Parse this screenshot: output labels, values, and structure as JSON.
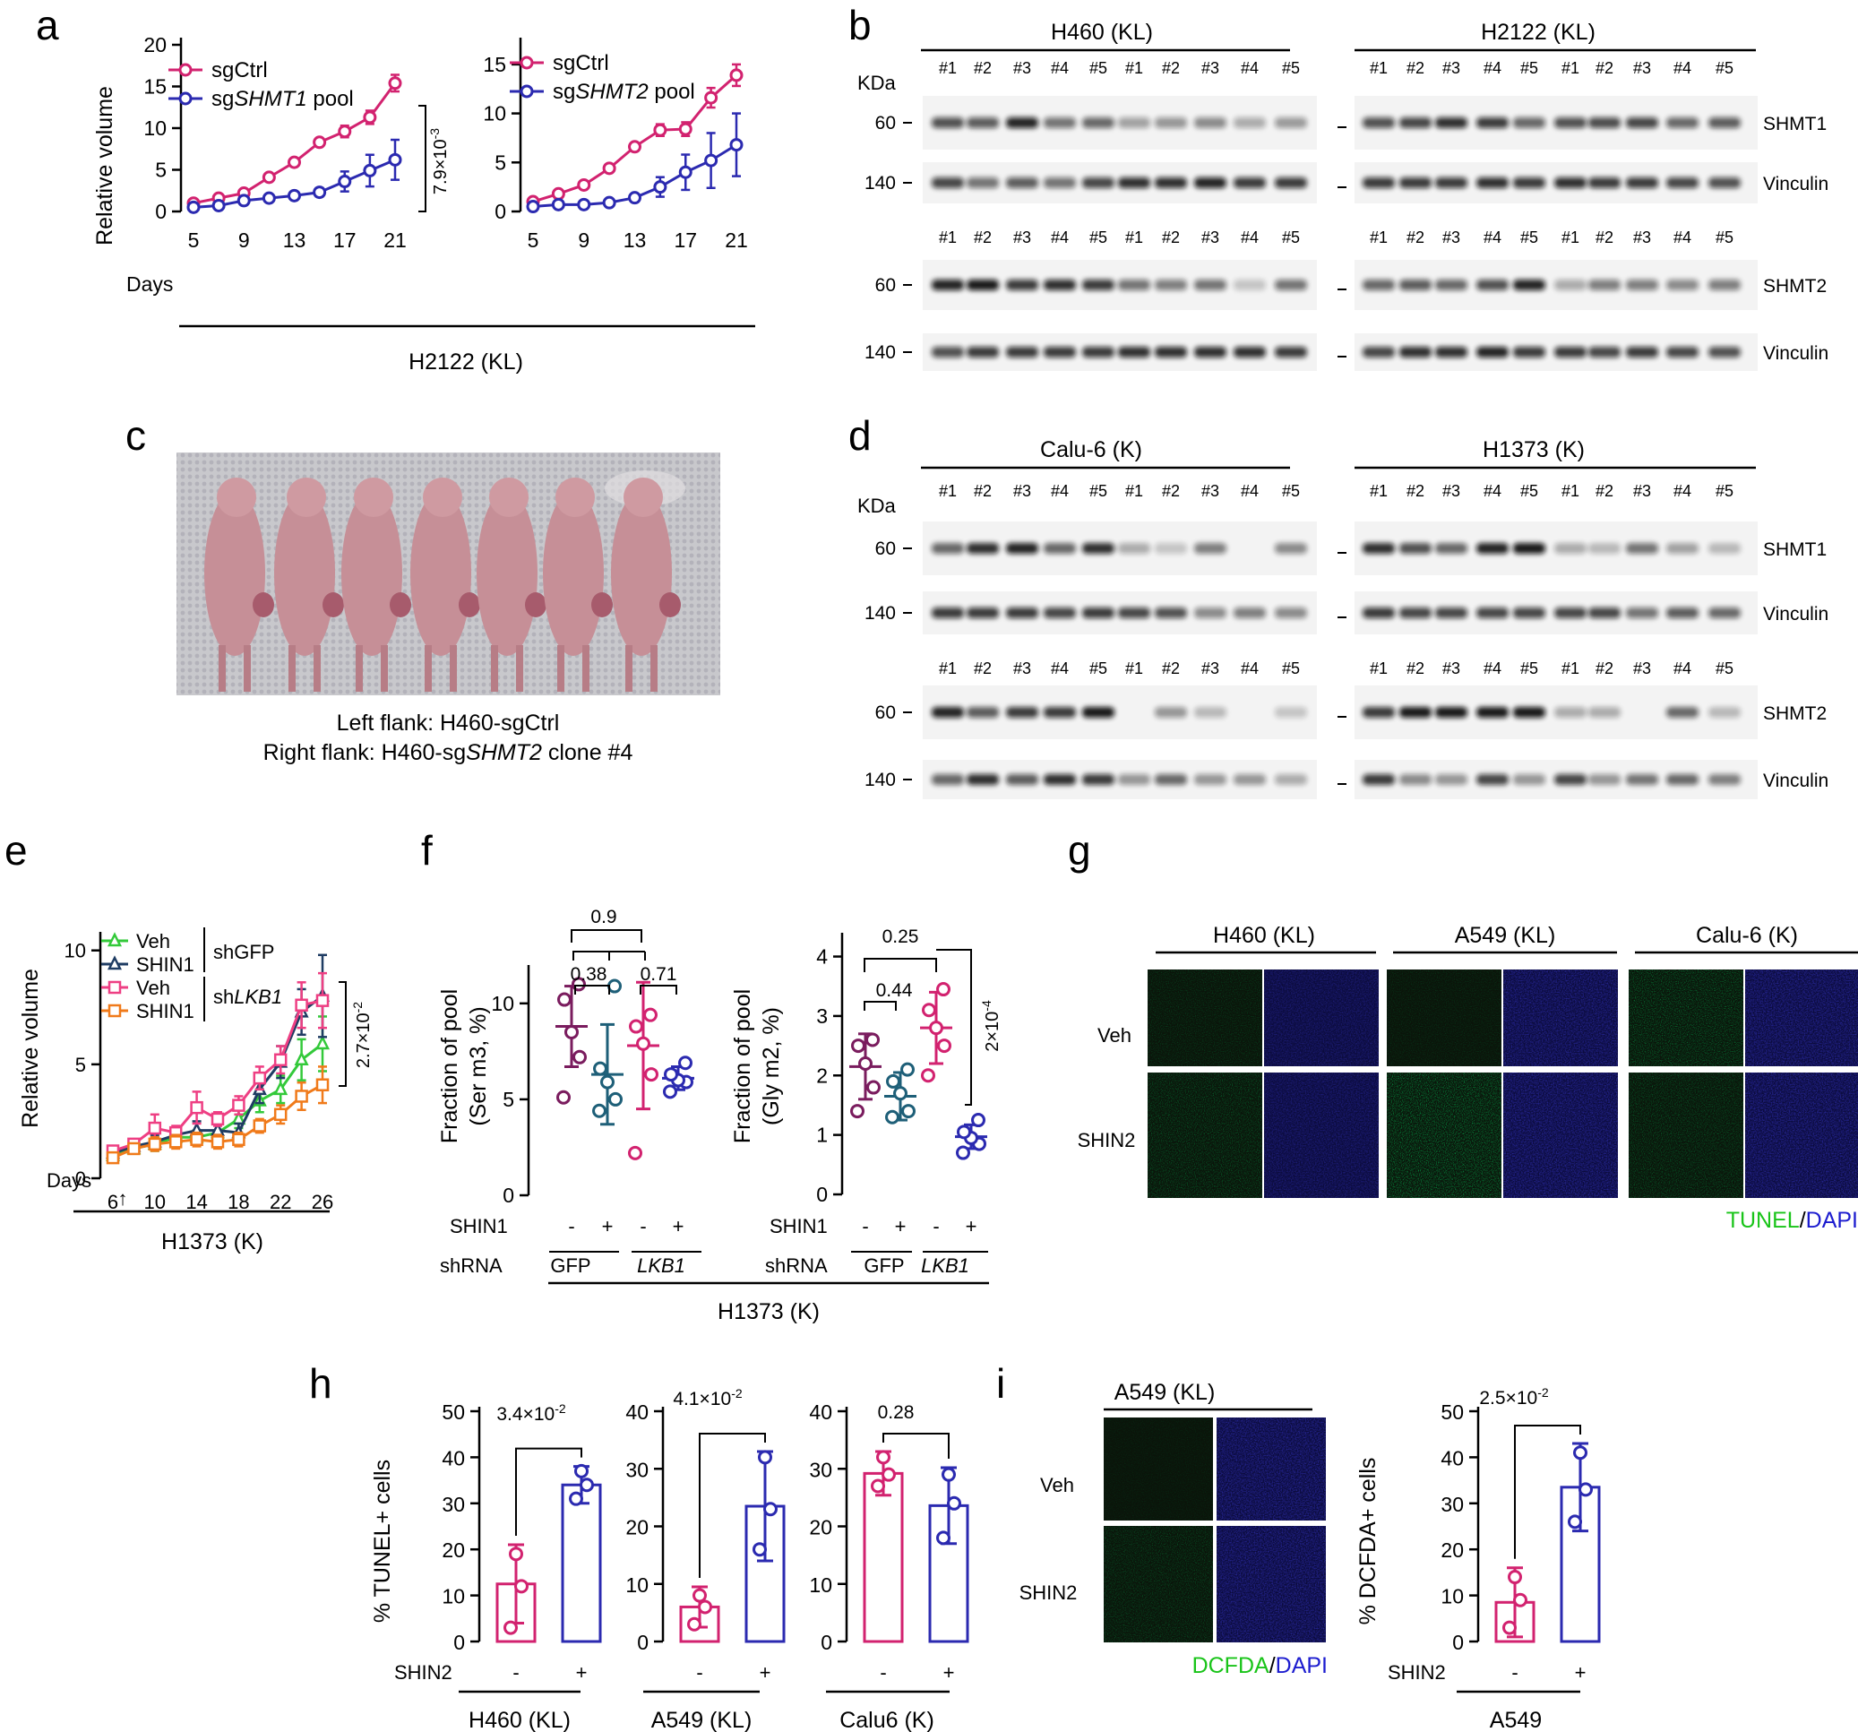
{
  "colors": {
    "pink": "#d2226f",
    "blue": "#2b2ab0",
    "purple": "#7a1c5e",
    "teal": "#1e5f78",
    "green": "#33c93a",
    "navy": "#1f3c63",
    "rose": "#ee3f83",
    "orange": "#f07a1a",
    "tunel": "#19c419",
    "dapi": "#1c1ccf"
  },
  "panel_labels": {
    "a": "a",
    "b": "b",
    "c": "c",
    "d": "d",
    "e": "e",
    "f": "f",
    "g": "g",
    "h": "h",
    "i": "i"
  },
  "panel_a": {
    "axis_label": "Relative volume",
    "group_label": "H2122 (KL)",
    "days_label": "Days",
    "pvalue": "7.9×10",
    "pvalue_exp": "-3",
    "left": {
      "legend": [
        {
          "name": "sgCtrl",
          "prefix": "sgCtrl",
          "gene": ""
        },
        {
          "name": "sgSHMT1 pool",
          "prefix": "sg",
          "gene": "SHMT1",
          "suffix": " pool"
        }
      ]
    },
    "right": {
      "legend": [
        {
          "name": "sgCtrl",
          "prefix": "sgCtrl",
          "gene": ""
        },
        {
          "name": "sgSHMT2 pool",
          "prefix": "sg",
          "gene": "SHMT2",
          "suffix": " pool"
        }
      ]
    }
  },
  "chart_data": [
    {
      "id": "a-left",
      "type": "line",
      "ylabel": "Relative volume",
      "xlabel": "Days",
      "xticks": [
        5,
        9,
        13,
        17,
        21
      ],
      "yticks": [
        0,
        5,
        10,
        15,
        20
      ],
      "ylim": [
        0,
        20
      ],
      "x": [
        5,
        7,
        9,
        11,
        13,
        15,
        17,
        19,
        21
      ],
      "series": [
        {
          "name": "sgCtrl",
          "values": [
            1.0,
            1.6,
            2.2,
            4.1,
            5.9,
            8.3,
            9.6,
            11.3,
            15.4
          ],
          "err": [
            0.2,
            0.2,
            0.3,
            0.3,
            0.3,
            0.4,
            0.7,
            0.8,
            1.0
          ]
        },
        {
          "name": "sgSHMT1 pool",
          "values": [
            0.5,
            0.7,
            1.3,
            1.6,
            1.9,
            2.3,
            3.6,
            4.9,
            6.2
          ],
          "err": [
            0.1,
            0.1,
            0.2,
            0.2,
            0.3,
            0.5,
            1.2,
            1.9,
            2.4
          ]
        }
      ]
    },
    {
      "id": "a-right",
      "type": "line",
      "xlabel": "Days",
      "xticks": [
        5,
        9,
        13,
        17,
        21
      ],
      "yticks": [
        0,
        5,
        10,
        15
      ],
      "ylim": [
        0,
        17
      ],
      "x": [
        5,
        7,
        9,
        11,
        13,
        15,
        17,
        19,
        21
      ],
      "series": [
        {
          "name": "sgCtrl",
          "values": [
            1.0,
            1.8,
            2.7,
            4.4,
            6.6,
            8.3,
            8.4,
            11.6,
            13.9
          ],
          "err": [
            0.2,
            0.2,
            0.3,
            0.3,
            0.4,
            0.6,
            0.7,
            1.0,
            1.1
          ]
        },
        {
          "name": "sgSHMT2 pool",
          "values": [
            0.5,
            0.7,
            0.7,
            0.9,
            1.4,
            2.5,
            4.0,
            5.2,
            6.8
          ],
          "err": [
            0.1,
            0.1,
            0.1,
            0.3,
            0.4,
            1.0,
            1.8,
            2.8,
            3.2
          ]
        }
      ]
    },
    {
      "id": "e",
      "type": "line",
      "ylabel": "Relative volume",
      "xlabel": "Days",
      "xticks": [
        6,
        10,
        14,
        18,
        22,
        26
      ],
      "yticks": [
        0,
        5,
        10
      ],
      "ylim": [
        0,
        10.5
      ],
      "x": [
        6,
        8,
        10,
        12,
        14,
        16,
        18,
        20,
        22,
        24,
        26
      ],
      "series": [
        {
          "name": "Veh shGFP",
          "values": [
            1.0,
            1.3,
            1.5,
            1.8,
            1.8,
            2.0,
            2.6,
            3.4,
            3.9,
            5.2,
            5.9
          ],
          "err": [
            0.2,
            0.2,
            0.3,
            0.3,
            0.3,
            0.4,
            0.4,
            0.5,
            0.6,
            0.9,
            1.2
          ]
        },
        {
          "name": "SHIN1 shGFP",
          "values": [
            1.1,
            1.4,
            1.6,
            1.9,
            2.1,
            2.1,
            2.0,
            3.9,
            5.1,
            7.3,
            8.0
          ],
          "err": [
            0.2,
            0.2,
            0.3,
            0.3,
            0.4,
            0.4,
            0.4,
            0.6,
            0.7,
            1.0,
            1.8
          ]
        },
        {
          "name": "Veh shLKB1",
          "values": [
            1.2,
            1.5,
            2.2,
            2.0,
            3.1,
            2.6,
            3.2,
            4.4,
            5.2,
            7.6,
            7.8
          ],
          "err": [
            0.2,
            0.2,
            0.6,
            0.3,
            0.7,
            0.3,
            0.4,
            0.5,
            0.6,
            1.0,
            1.2
          ]
        },
        {
          "name": "SHIN1 shLKB1",
          "values": [
            0.9,
            1.3,
            1.5,
            1.6,
            1.7,
            1.6,
            1.7,
            2.3,
            2.8,
            3.6,
            4.1
          ],
          "err": [
            0.2,
            0.2,
            0.3,
            0.3,
            0.3,
            0.3,
            0.3,
            0.3,
            0.4,
            0.6,
            0.8
          ]
        }
      ]
    },
    {
      "id": "f-left",
      "type": "scatter",
      "ylabel": "Fraction of pool (Ser m3, %)",
      "yticks": [
        0,
        5,
        10
      ],
      "ylim": [
        0,
        12
      ],
      "groups": [
        {
          "name": "GFP -",
          "mean": 8.8,
          "sd": 2.1,
          "points": [
            5.1,
            7.2,
            8.5,
            10.2,
            11.0
          ]
        },
        {
          "name": "GFP +",
          "mean": 6.3,
          "sd": 2.6,
          "points": [
            4.4,
            5.0,
            5.9,
            6.6,
            10.9
          ]
        },
        {
          "name": "LKB1 -",
          "mean": 7.8,
          "sd": 3.3,
          "points": [
            2.2,
            6.3,
            7.9,
            8.8,
            9.4
          ]
        },
        {
          "name": "LKB1 +",
          "mean": 6.1,
          "sd": 0.6,
          "points": [
            5.4,
            5.9,
            6.0,
            6.3,
            6.9
          ]
        }
      ],
      "comparisons": [
        "0.9",
        "0.38",
        "0.71"
      ]
    },
    {
      "id": "f-right",
      "type": "scatter",
      "ylabel": "Fraction of pool (Gly m2, %)",
      "yticks": [
        0,
        1,
        2,
        3,
        4
      ],
      "ylim": [
        0,
        4.4
      ],
      "groups": [
        {
          "name": "GFP -",
          "mean": 2.15,
          "sd": 0.55,
          "points": [
            1.4,
            1.8,
            2.2,
            2.5,
            2.6
          ]
        },
        {
          "name": "GFP +",
          "mean": 1.65,
          "sd": 0.4,
          "points": [
            1.3,
            1.4,
            1.7,
            1.9,
            2.1
          ]
        },
        {
          "name": "LKB1 -",
          "mean": 2.8,
          "sd": 0.6,
          "points": [
            2.0,
            2.5,
            2.8,
            3.1,
            3.45
          ]
        },
        {
          "name": "LKB1 +",
          "mean": 0.97,
          "sd": 0.2,
          "points": [
            0.7,
            0.85,
            0.95,
            1.05,
            1.25
          ]
        }
      ],
      "comparisons": [
        "0.25",
        "0.44",
        "2×10-4"
      ]
    },
    {
      "id": "h-1",
      "type": "bar",
      "title": "H460 (KL)",
      "ylabel": "% TUNEL+ cells",
      "yticks": [
        0,
        10,
        20,
        30,
        40,
        50
      ],
      "ylim": [
        0,
        50
      ],
      "categories": [
        "-",
        "+"
      ],
      "values": [
        12.5,
        34
      ],
      "err": [
        8.5,
        4
      ],
      "points": [
        [
          3,
          12,
          19
        ],
        [
          31,
          34,
          37
        ]
      ],
      "pvalue": "3.4×10-2"
    },
    {
      "id": "h-2",
      "type": "bar",
      "title": "A549 (KL)",
      "yticks": [
        0,
        10,
        20,
        30,
        40
      ],
      "ylim": [
        0,
        40
      ],
      "categories": [
        "-",
        "+"
      ],
      "values": [
        6,
        23.5
      ],
      "err": [
        3.5,
        9.5
      ],
      "points": [
        [
          3,
          6,
          8
        ],
        [
          16,
          23,
          32
        ]
      ],
      "pvalue": "4.1×10-2"
    },
    {
      "id": "h-3",
      "type": "bar",
      "title": "Calu6 (K)",
      "yticks": [
        0,
        10,
        20,
        30,
        40
      ],
      "ylim": [
        0,
        40
      ],
      "categories": [
        "-",
        "+"
      ],
      "values": [
        29.2,
        23.6
      ],
      "err": [
        3.8,
        6.6
      ],
      "points": [
        [
          27,
          29,
          32
        ],
        [
          18,
          24,
          29
        ]
      ],
      "pvalue": "0.28"
    },
    {
      "id": "i",
      "type": "bar",
      "title": "A549",
      "ylabel": "% DCFDA+ cells",
      "yticks": [
        0,
        10,
        20,
        30,
        40,
        50
      ],
      "ylim": [
        0,
        50
      ],
      "categories": [
        "-",
        "+"
      ],
      "values": [
        8.5,
        33.5
      ],
      "err": [
        7.5,
        9.5
      ],
      "points": [
        [
          3,
          9,
          14
        ],
        [
          26,
          33,
          41
        ]
      ],
      "pvalue": "2.5×10-2"
    }
  ],
  "panel_b": {
    "kda": "KDa",
    "top_left_title": "H460 (KL)",
    "top_right_title": "H2122 (KL)",
    "lanes": [
      "#1",
      "#2",
      "#3",
      "#4",
      "#5",
      "#1",
      "#2",
      "#3",
      "#4",
      "#5"
    ],
    "mw": [
      "60",
      "140",
      "60",
      "140"
    ],
    "bands": [
      "SHMT1",
      "Vinculin",
      "SHMT2",
      "Vinculin"
    ]
  },
  "panel_c": {
    "caption_line1": "Left flank: H460-sgCtrl",
    "caption_line2_prefix": "Right flank: H460-sg",
    "caption_line2_gene": "SHMT2",
    "caption_line2_suffix": " clone #4"
  },
  "panel_d": {
    "kda": "KDa",
    "top_left_title": "Calu-6 (K)",
    "top_right_title": "H1373 (K)",
    "lanes": [
      "#1",
      "#2",
      "#3",
      "#4",
      "#5",
      "#1",
      "#2",
      "#3",
      "#4",
      "#5"
    ],
    "mw": [
      "60",
      "140",
      "60",
      "140"
    ],
    "bands": [
      "SHMT1",
      "Vinculin",
      "SHMT2",
      "Vinculin"
    ]
  },
  "panel_e": {
    "axis_label": "Relative volume",
    "days_label": "Days",
    "group_label": "H1373 (K)",
    "pvalue": "2.7×10",
    "pvalue_exp": "-2",
    "legend": [
      "Veh",
      "SHIN1",
      "Veh",
      "SHIN1"
    ],
    "legend_group1": "shGFP",
    "legend_group2_prefix": "sh",
    "legend_group2_gene": "LKB1"
  },
  "panel_f": {
    "axis_label_left_1": "Fraction of pool",
    "axis_label_left_2": "(Ser m3, %)",
    "axis_label_right_1": "Fraction of pool",
    "axis_label_right_2": "(Gly m2, %)",
    "shin1": "SHIN1",
    "shrna": "shRNA",
    "gfp": "GFP",
    "lkb1": "LKB1",
    "minus": "-",
    "plus": "+",
    "group_label": "H1373 (K)",
    "p_left": [
      "0.9",
      "0.38",
      "0.71"
    ],
    "p_right_1": "0.25",
    "p_right_2": "0.44",
    "p_right_3": "2×10",
    "p_right_3_exp": "-4"
  },
  "panel_g": {
    "titles": [
      "H460 (KL)",
      "A549 (KL)",
      "Calu-6 (K)"
    ],
    "rows": [
      "Veh",
      "SHIN2"
    ],
    "legend_tunel": "TUNEL",
    "legend_slash": "/",
    "legend_dapi": "DAPI"
  },
  "panel_h": {
    "axis_label": "% TUNEL+ cells",
    "shin2": "SHIN2",
    "minus": "-",
    "plus": "+",
    "titles": [
      "H460 (KL)",
      "A549 (KL)",
      "Calu6 (K)"
    ],
    "pvals": [
      "3.4×10",
      "4.1×10",
      "0.28"
    ],
    "pval_exps": [
      "-2",
      "-2",
      ""
    ]
  },
  "panel_i": {
    "title": "A549 (KL)",
    "rows": [
      "Veh",
      "SHIN2"
    ],
    "legend_dcfda": "DCFDA",
    "legend_slash": "/",
    "legend_dapi": "DAPI",
    "axis_label": "% DCFDA+ cells",
    "shin2": "SHIN2",
    "minus": "-",
    "plus": "+",
    "group_label": "A549",
    "pvalue": "2.5×10",
    "pvalue_exp": "-2"
  }
}
